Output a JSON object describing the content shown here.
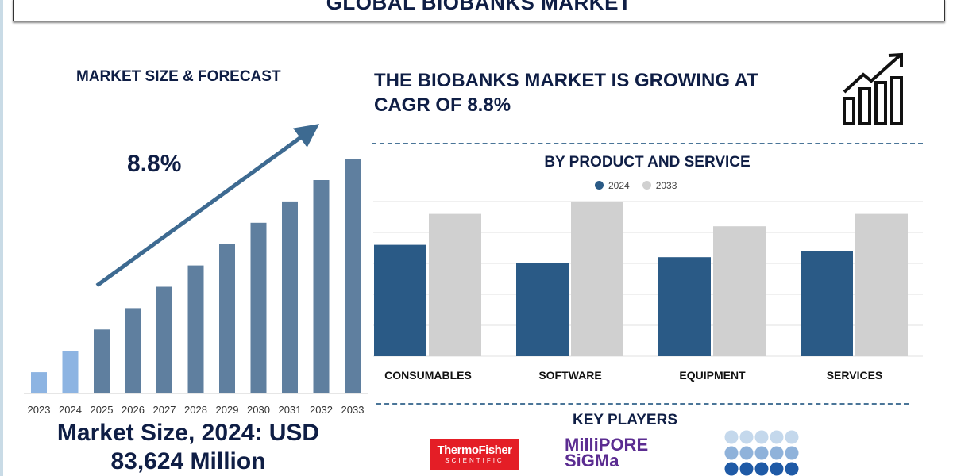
{
  "header": {
    "title": "GLOBAL BIOBANKS MARKET"
  },
  "left": {
    "heading": "MARKET SIZE & FORECAST",
    "cagr_label": "8.8%",
    "market_size_line1": "Market Size, 2024: USD",
    "market_size_line2": "83,624 Million"
  },
  "right": {
    "headline_line1": "THE BIOBANKS MARKET IS GROWING AT",
    "headline_line2": "CAGR OF 8.8%",
    "growth_icon": "growth-chart-icon",
    "key_players_heading": "KEY PLAYERS",
    "key_players": [
      {
        "name": "ThermoFisher",
        "sub": "SCIENTIFIC"
      },
      {
        "name": "MilliPORE",
        "sub": "SiGMa"
      },
      {
        "name": "dots-logo"
      }
    ]
  },
  "chart_data": [
    {
      "type": "bar",
      "title": "",
      "categories": [
        "2023",
        "2024",
        "2025",
        "2026",
        "2027",
        "2028",
        "2029",
        "2030",
        "2031",
        "2032",
        "2033"
      ],
      "values": [
        1,
        2,
        3,
        4,
        5,
        6,
        7,
        8,
        9,
        10,
        11
      ],
      "colors": [
        "#8db4e2",
        "#8db4e2",
        "#5f7f9f",
        "#5f7f9f",
        "#5f7f9f",
        "#5f7f9f",
        "#5f7f9f",
        "#5f7f9f",
        "#5f7f9f",
        "#5f7f9f",
        "#5f7f9f"
      ],
      "grid": false
    },
    {
      "type": "bar",
      "title": "BY PRODUCT AND SERVICE",
      "categories": [
        "CONSUMABLES",
        "SOFTWARE",
        "EQUIPMENT",
        "SERVICES"
      ],
      "series": [
        {
          "name": "2024",
          "values": [
            3.6,
            3.0,
            3.2,
            3.4
          ],
          "color": "#2a5a86"
        },
        {
          "name": "2033",
          "values": [
            4.6,
            5.0,
            4.2,
            4.6
          ],
          "color": "#d0d0d0"
        }
      ],
      "ylim": [
        0,
        5
      ],
      "grid": true,
      "legend": "top"
    }
  ]
}
